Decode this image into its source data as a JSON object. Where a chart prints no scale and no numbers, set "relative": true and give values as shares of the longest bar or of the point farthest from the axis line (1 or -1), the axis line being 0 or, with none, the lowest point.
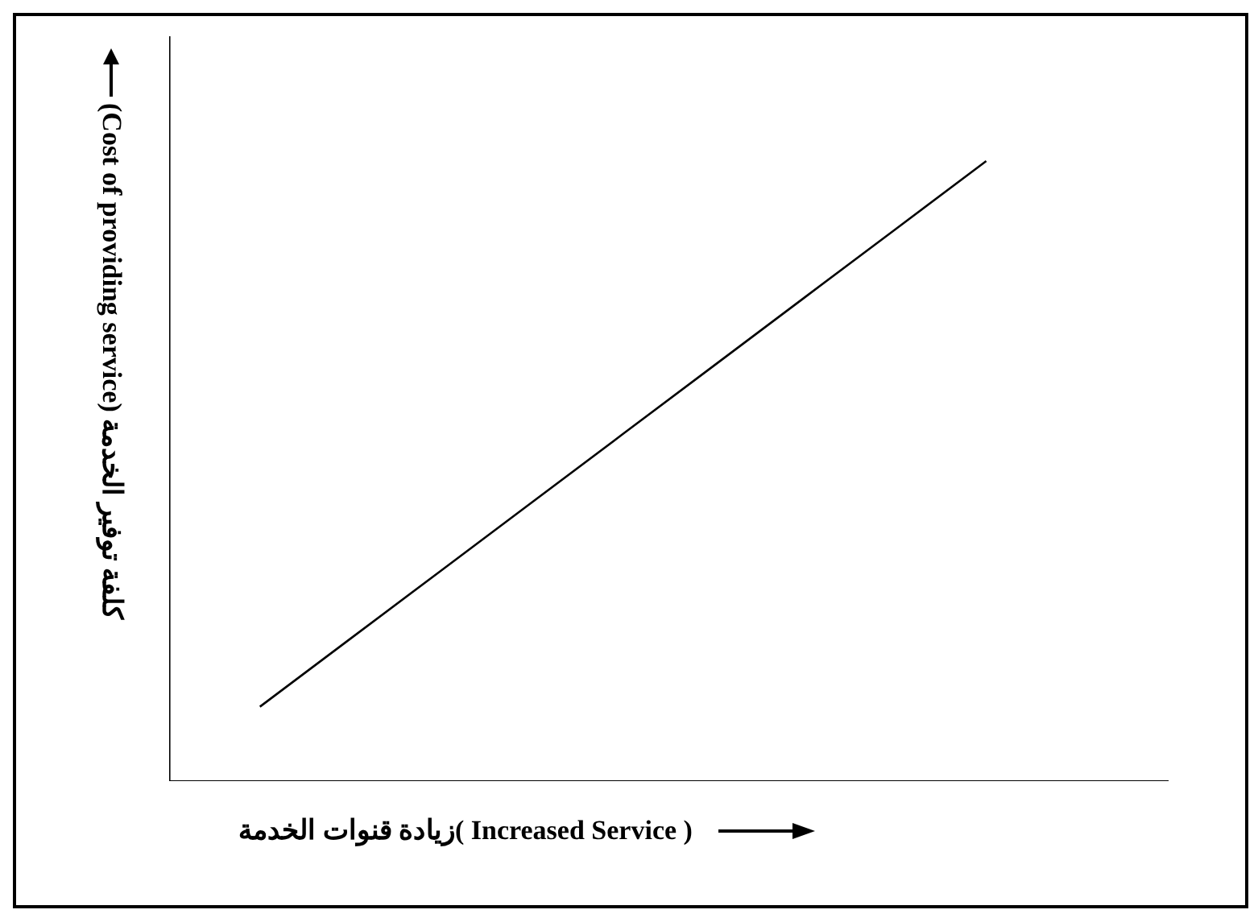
{
  "chart_data": {
    "type": "line",
    "xlabel": "زيادة قنوات الخدمة( Increased Service )",
    "ylabel": "(Cost of providing service) كلفة توفير الخدمة",
    "categories": [
      null,
      null,
      null,
      null,
      null,
      null,
      null,
      null,
      null,
      null,
      null,
      null
    ],
    "series": [
      {
        "color": "#000000",
        "values": [
          null,
          0.12,
          0.23,
          0.34,
          0.45,
          0.56,
          0.67,
          0.78,
          0.89,
          1,
          null,
          null
        ]
      }
    ],
    "relative": true,
    "tick_labels": false,
    "grid": false,
    "legend": false,
    "marker": "none",
    "line_style": "solid"
  }
}
